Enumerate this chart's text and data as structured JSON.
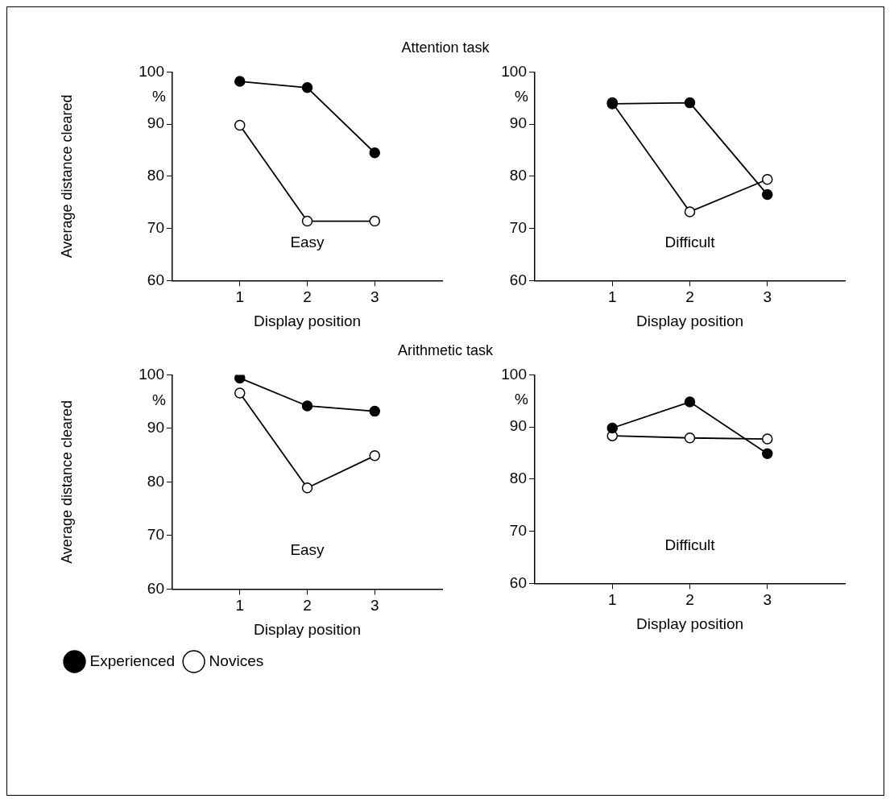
{
  "chart_data": [
    {
      "type": "line",
      "title": "Attention task",
      "ylabel": "Average distance cleared",
      "xlabel": "Display position",
      "annotations": [
        "%",
        "Easy"
      ],
      "x": [
        1,
        2,
        3
      ],
      "xlim": [
        0,
        4
      ],
      "xticks": [
        1,
        2,
        3
      ],
      "ylim": [
        60,
        100
      ],
      "yticks": [
        60,
        70,
        80,
        90,
        100
      ],
      "grid": false,
      "legend": false,
      "marker": "circle",
      "line_style": "solid",
      "series": [
        {
          "color": "#000000",
          "values": [
            98.2,
            97.0,
            84.5
          ]
        },
        {
          "color": "#000000",
          "values": [
            89.8,
            71.4,
            71.4
          ]
        }
      ]
    },
    {
      "type": "line",
      "xlabel": "Display position",
      "annotations": [
        "%",
        "Difficult"
      ],
      "x": [
        1,
        2,
        3
      ],
      "xlim": [
        0,
        4
      ],
      "xticks": [
        1,
        2,
        3
      ],
      "ylim": [
        60,
        100
      ],
      "yticks": [
        60,
        70,
        80,
        90,
        100
      ],
      "grid": false,
      "legend": false,
      "marker": "circle",
      "line_style": "solid",
      "series": [
        {
          "color": "#000000",
          "values": [
            93.9,
            94.1,
            76.5
          ]
        },
        {
          "color": "#000000",
          "values": [
            94.1,
            73.2,
            79.4
          ]
        }
      ]
    },
    {
      "type": "line",
      "title": "Arithmetic task",
      "ylabel": "Average distance cleared",
      "xlabel": "Display position",
      "annotations": [
        "%",
        "Easy"
      ],
      "x": [
        1,
        2,
        3
      ],
      "xlim": [
        0,
        4
      ],
      "xticks": [
        1,
        2,
        3
      ],
      "ylim": [
        60,
        100
      ],
      "yticks": [
        60,
        70,
        80,
        90,
        100
      ],
      "grid": false,
      "legend": "bottom",
      "marker": "circle",
      "line_style": "solid",
      "series": [
        {
          "name": "Experienced",
          "color": "#000000",
          "values": [
            99.4,
            94.2,
            93.2
          ]
        },
        {
          "name": "Novices",
          "color": "#000000",
          "values": [
            96.6,
            78.9,
            84.9
          ]
        }
      ]
    },
    {
      "type": "line",
      "xlabel": "Display position",
      "annotations": [
        "%",
        "Difficult"
      ],
      "x": [
        1,
        2,
        3
      ],
      "xlim": [
        0,
        4
      ],
      "xticks": [
        1,
        2,
        3
      ],
      "ylim": [
        60,
        100
      ],
      "yticks": [
        60,
        70,
        80,
        90,
        100
      ],
      "grid": false,
      "legend": false,
      "marker": "circle",
      "line_style": "solid",
      "series": [
        {
          "color": "#000000",
          "values": [
            89.8,
            94.8,
            84.9
          ]
        },
        {
          "color": "#000000",
          "values": [
            88.3,
            87.9,
            87.7
          ]
        }
      ]
    }
  ]
}
